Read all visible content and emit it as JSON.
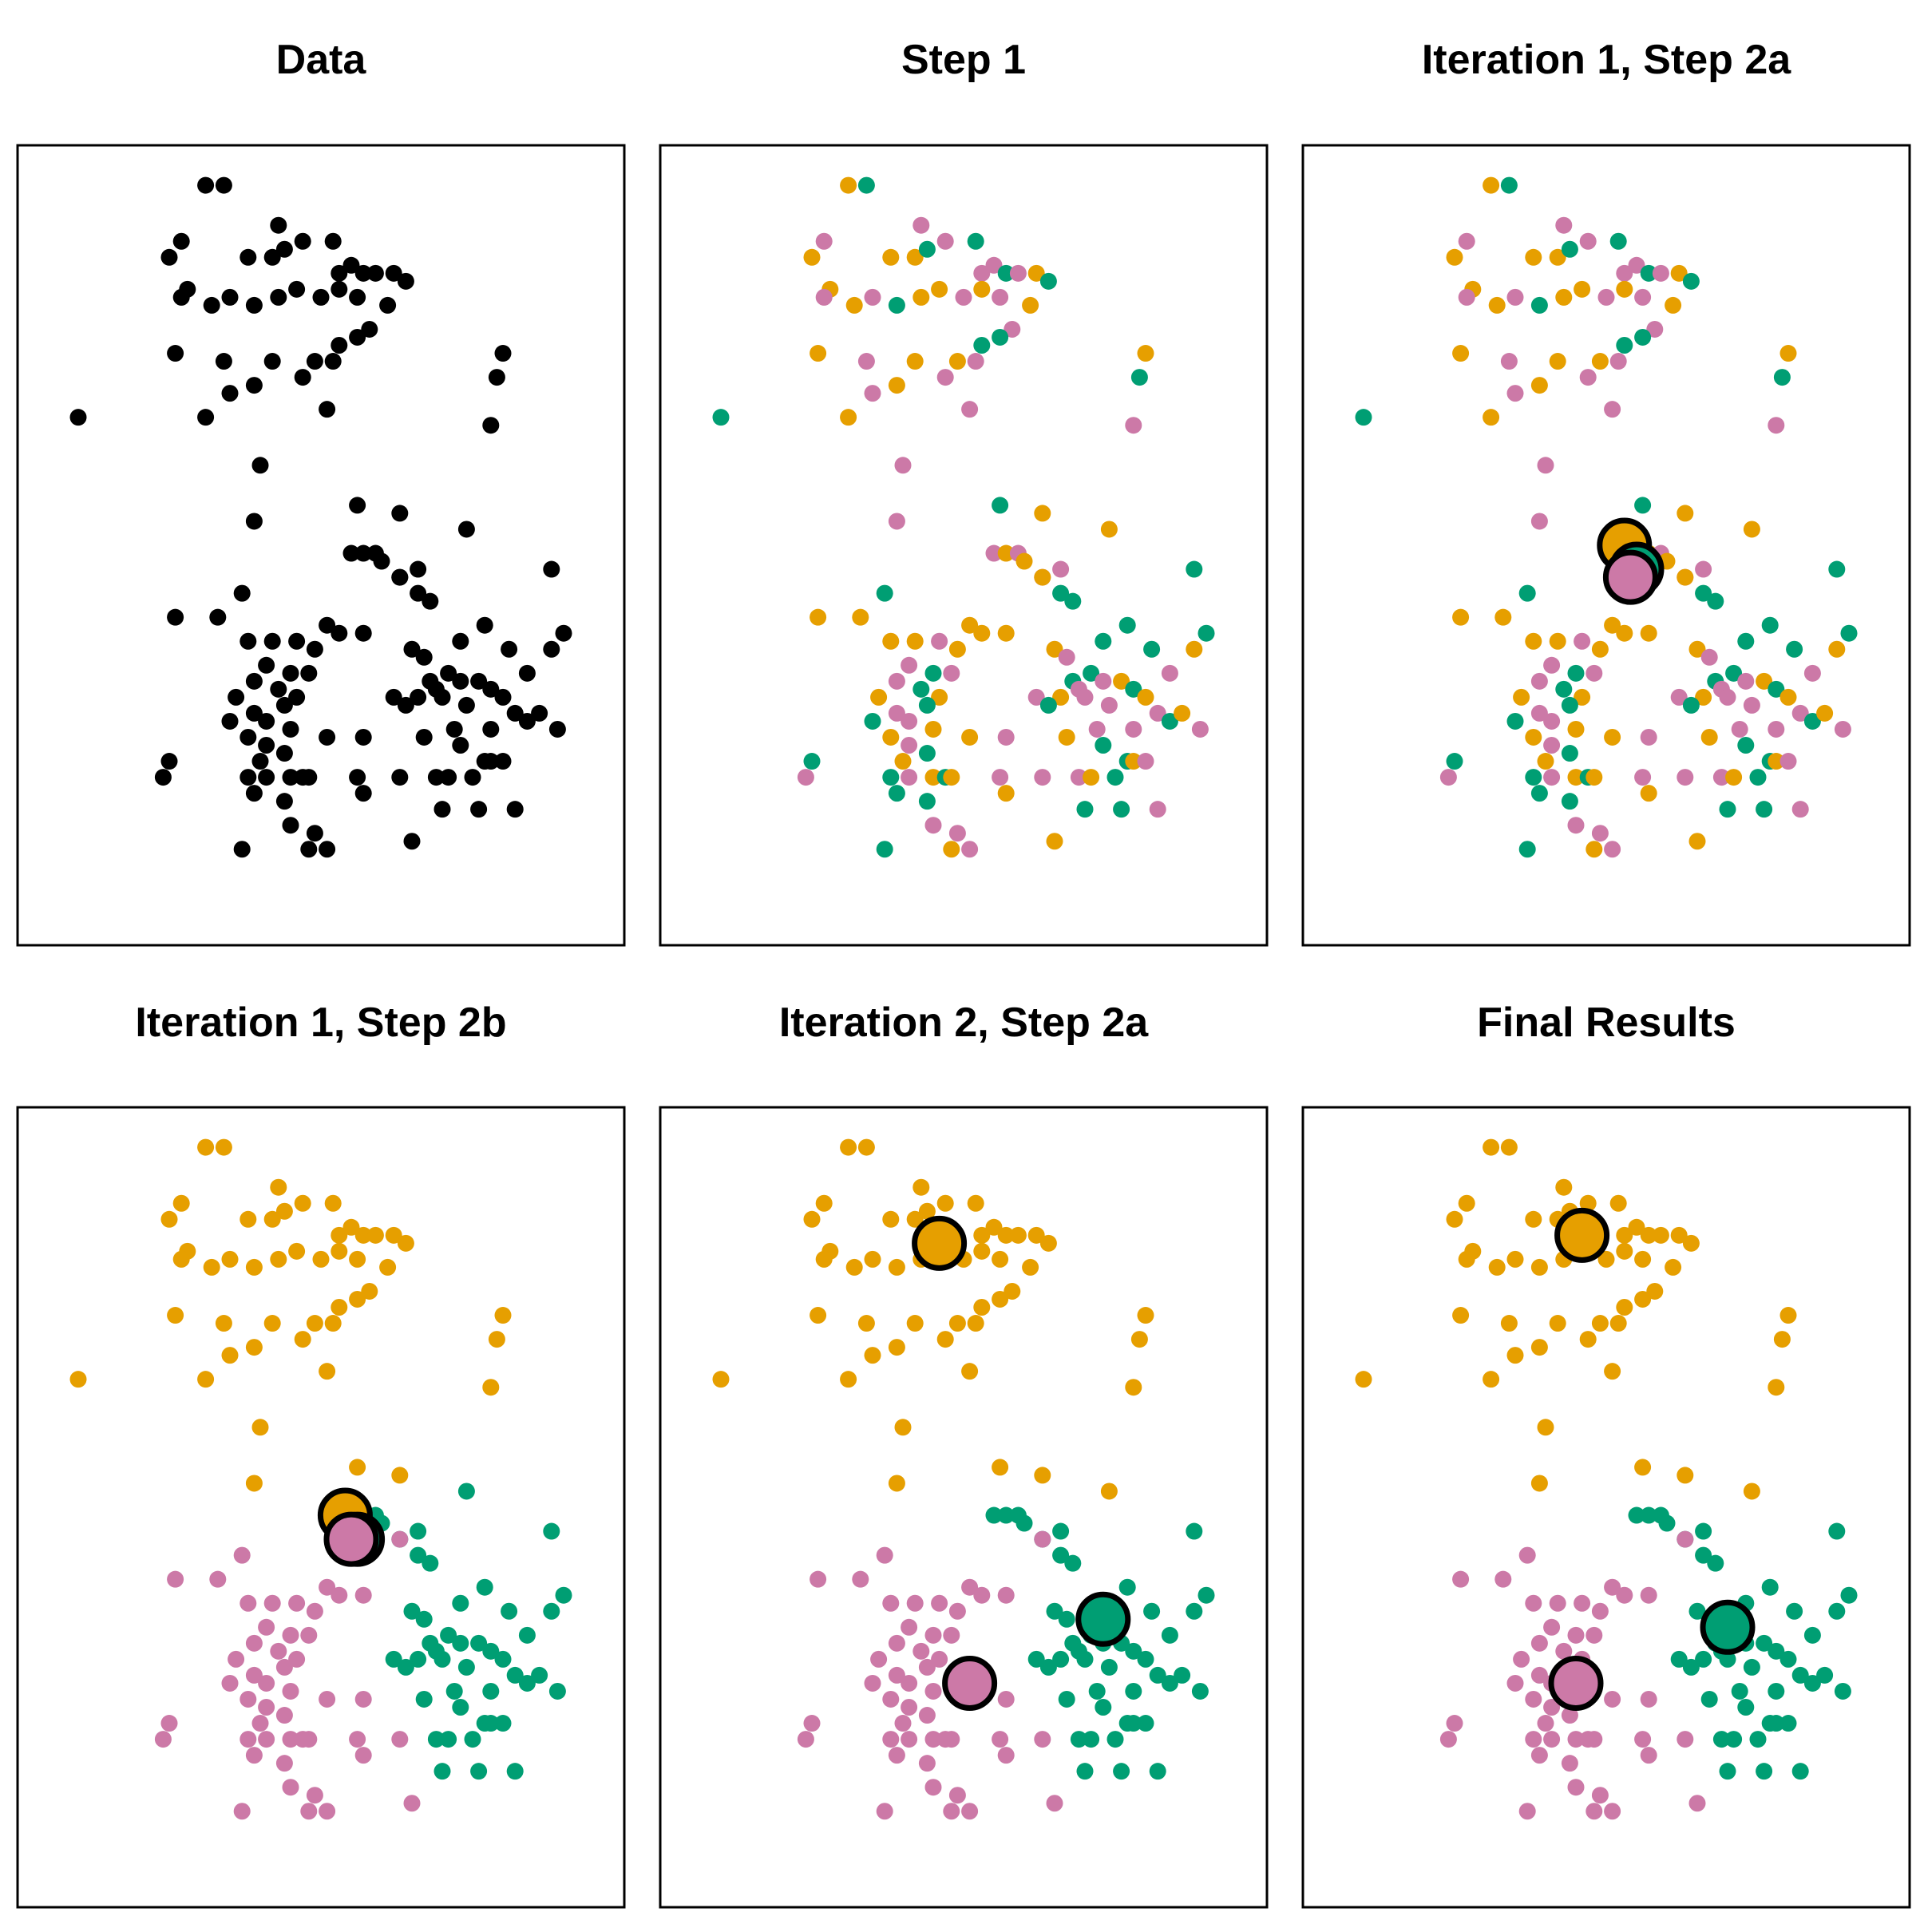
{
  "colors": {
    "orange": "#E69F00",
    "green": "#009E73",
    "pink": "#CC79A7",
    "black": "#000000"
  },
  "chart_data": [
    {
      "type": "scatter",
      "title": "Data",
      "mode": "data",
      "centroids": []
    },
    {
      "type": "scatter",
      "title": "Step 1",
      "mode": "random",
      "centroids": []
    },
    {
      "type": "scatter",
      "title": "Iteration 1, Step 2a",
      "mode": "random",
      "centroids": [
        {
          "cluster": "orange",
          "x": 0.53,
          "y": 0.5
        },
        {
          "cluster": "green",
          "x": 0.55,
          "y": 0.47
        },
        {
          "cluster": "pink",
          "x": 0.54,
          "y": 0.46
        }
      ]
    },
    {
      "type": "scatter",
      "title": "Iteration 1, Step 2b",
      "mode": "cluster1",
      "centroids": [
        {
          "cluster": "orange",
          "x": 0.54,
          "y": 0.49
        },
        {
          "cluster": "green",
          "x": 0.56,
          "y": 0.46
        },
        {
          "cluster": "pink",
          "x": 0.55,
          "y": 0.46
        }
      ]
    },
    {
      "type": "scatter",
      "title": "Iteration 2, Step 2a",
      "mode": "cluster2",
      "centroids": [
        {
          "cluster": "orange",
          "x": 0.46,
          "y": 0.83
        },
        {
          "cluster": "green",
          "x": 0.73,
          "y": 0.36
        },
        {
          "cluster": "pink",
          "x": 0.51,
          "y": 0.28
        }
      ]
    },
    {
      "type": "scatter",
      "title": "Final Results",
      "mode": "cluster2",
      "centroids": [
        {
          "cluster": "orange",
          "x": 0.46,
          "y": 0.84
        },
        {
          "cluster": "green",
          "x": 0.7,
          "y": 0.35
        },
        {
          "cluster": "pink",
          "x": 0.45,
          "y": 0.28
        }
      ]
    }
  ],
  "points": [
    {
      "x": 0.31,
      "y": 0.95,
      "c1": "orange",
      "c2": "orange",
      "r": "orange"
    },
    {
      "x": 0.34,
      "y": 0.95,
      "c1": "orange",
      "c2": "orange",
      "r": "green"
    },
    {
      "x": 0.43,
      "y": 0.9,
      "c1": "orange",
      "c2": "orange",
      "r": "pink"
    },
    {
      "x": 0.47,
      "y": 0.88,
      "c1": "orange",
      "c2": "orange",
      "r": "pink"
    },
    {
      "x": 0.52,
      "y": 0.88,
      "c1": "orange",
      "c2": "orange",
      "r": "green"
    },
    {
      "x": 0.25,
      "y": 0.86,
      "c1": "orange",
      "c2": "orange",
      "r": "orange"
    },
    {
      "x": 0.27,
      "y": 0.88,
      "c1": "orange",
      "c2": "orange",
      "r": "pink"
    },
    {
      "x": 0.38,
      "y": 0.86,
      "c1": "orange",
      "c2": "orange",
      "r": "orange"
    },
    {
      "x": 0.42,
      "y": 0.86,
      "c1": "orange",
      "c2": "orange",
      "r": "orange"
    },
    {
      "x": 0.44,
      "y": 0.87,
      "c1": "orange",
      "c2": "orange",
      "r": "green"
    },
    {
      "x": 0.53,
      "y": 0.84,
      "c1": "orange",
      "c2": "orange",
      "r": "pink"
    },
    {
      "x": 0.55,
      "y": 0.85,
      "c1": "orange",
      "c2": "orange",
      "r": "pink"
    },
    {
      "x": 0.57,
      "y": 0.84,
      "c1": "orange",
      "c2": "orange",
      "r": "green"
    },
    {
      "x": 0.59,
      "y": 0.84,
      "c1": "orange",
      "c2": "orange",
      "r": "pink"
    },
    {
      "x": 0.62,
      "y": 0.84,
      "c1": "orange",
      "c2": "orange",
      "r": "orange"
    },
    {
      "x": 0.64,
      "y": 0.83,
      "c1": "orange",
      "c2": "orange",
      "r": "green"
    },
    {
      "x": 0.28,
      "y": 0.82,
      "c1": "orange",
      "c2": "orange",
      "r": "orange"
    },
    {
      "x": 0.27,
      "y": 0.81,
      "c1": "orange",
      "c2": "orange",
      "r": "pink"
    },
    {
      "x": 0.32,
      "y": 0.8,
      "c1": "orange",
      "c2": "orange",
      "r": "orange"
    },
    {
      "x": 0.35,
      "y": 0.81,
      "c1": "orange",
      "c2": "orange",
      "r": "pink"
    },
    {
      "x": 0.39,
      "y": 0.8,
      "c1": "orange",
      "c2": "orange",
      "r": "green"
    },
    {
      "x": 0.43,
      "y": 0.81,
      "c1": "orange",
      "c2": "orange",
      "r": "orange"
    },
    {
      "x": 0.46,
      "y": 0.82,
      "c1": "orange",
      "c2": "orange",
      "r": "orange"
    },
    {
      "x": 0.5,
      "y": 0.81,
      "c1": "orange",
      "c2": "orange",
      "r": "pink"
    },
    {
      "x": 0.53,
      "y": 0.82,
      "c1": "orange",
      "c2": "orange",
      "r": "orange"
    },
    {
      "x": 0.56,
      "y": 0.81,
      "c1": "orange",
      "c2": "orange",
      "r": "pink"
    },
    {
      "x": 0.61,
      "y": 0.8,
      "c1": "orange",
      "c2": "orange",
      "r": "orange"
    },
    {
      "x": 0.58,
      "y": 0.77,
      "c1": "orange",
      "c2": "orange",
      "r": "pink"
    },
    {
      "x": 0.56,
      "y": 0.76,
      "c1": "orange",
      "c2": "orange",
      "r": "green"
    },
    {
      "x": 0.26,
      "y": 0.74,
      "c1": "orange",
      "c2": "orange",
      "r": "orange"
    },
    {
      "x": 0.34,
      "y": 0.73,
      "c1": "orange",
      "c2": "orange",
      "r": "pink"
    },
    {
      "x": 0.42,
      "y": 0.73,
      "c1": "orange",
      "c2": "orange",
      "r": "orange"
    },
    {
      "x": 0.49,
      "y": 0.73,
      "c1": "orange",
      "c2": "orange",
      "r": "orange"
    },
    {
      "x": 0.52,
      "y": 0.73,
      "c1": "orange",
      "c2": "orange",
      "r": "pink"
    },
    {
      "x": 0.53,
      "y": 0.75,
      "c1": "orange",
      "c2": "orange",
      "r": "green"
    },
    {
      "x": 0.35,
      "y": 0.69,
      "c1": "orange",
      "c2": "orange",
      "r": "pink"
    },
    {
      "x": 0.39,
      "y": 0.7,
      "c1": "orange",
      "c2": "orange",
      "r": "orange"
    },
    {
      "x": 0.47,
      "y": 0.71,
      "c1": "orange",
      "c2": "orange",
      "r": "pink"
    },
    {
      "x": 0.51,
      "y": 0.67,
      "c1": "orange",
      "c2": "orange",
      "r": "pink"
    },
    {
      "x": 0.31,
      "y": 0.66,
      "c1": "orange",
      "c2": "orange",
      "r": "orange"
    },
    {
      "x": 0.1,
      "y": 0.66,
      "c1": "orange",
      "c2": "orange",
      "r": "green"
    },
    {
      "x": 0.8,
      "y": 0.74,
      "c1": "orange",
      "c2": "orange",
      "r": "orange"
    },
    {
      "x": 0.79,
      "y": 0.71,
      "c1": "orange",
      "c2": "orange",
      "r": "green"
    },
    {
      "x": 0.78,
      "y": 0.65,
      "c1": "orange",
      "c2": "orange",
      "r": "pink"
    },
    {
      "x": 0.4,
      "y": 0.6,
      "c1": "orange",
      "c2": "orange",
      "r": "pink"
    },
    {
      "x": 0.39,
      "y": 0.53,
      "c1": "orange",
      "c2": "orange",
      "r": "pink"
    },
    {
      "x": 0.56,
      "y": 0.55,
      "c1": "orange",
      "c2": "orange",
      "r": "green"
    },
    {
      "x": 0.63,
      "y": 0.54,
      "c1": "orange",
      "c2": "orange",
      "r": "orange"
    },
    {
      "x": 0.74,
      "y": 0.52,
      "c1": "green",
      "c2": "orange",
      "r": "orange"
    },
    {
      "x": 0.55,
      "y": 0.49,
      "c1": "green",
      "c2": "green",
      "r": "pink"
    },
    {
      "x": 0.57,
      "y": 0.49,
      "c1": "green",
      "c2": "green",
      "r": "orange"
    },
    {
      "x": 0.59,
      "y": 0.49,
      "c1": "green",
      "c2": "green",
      "r": "pink"
    },
    {
      "x": 0.6,
      "y": 0.48,
      "c1": "green",
      "c2": "green",
      "r": "orange"
    },
    {
      "x": 0.63,
      "y": 0.46,
      "c1": "green",
      "c2": "green",
      "r": "pink"
    },
    {
      "x": 0.66,
      "y": 0.47,
      "c1": "green",
      "c2": "green",
      "r": "pink"
    },
    {
      "x": 0.66,
      "y": 0.44,
      "c1": "green",
      "c2": "green",
      "r": "green"
    },
    {
      "x": 0.88,
      "y": 0.47,
      "c1": "green",
      "c2": "green",
      "r": "green"
    },
    {
      "x": 0.68,
      "y": 0.43,
      "c1": "green",
      "c2": "green",
      "r": "green"
    },
    {
      "x": 0.9,
      "y": 0.39,
      "c1": "green",
      "c2": "green",
      "r": "green"
    },
    {
      "x": 0.88,
      "y": 0.37,
      "c1": "green",
      "c2": "green",
      "r": "orange"
    },
    {
      "x": 0.77,
      "y": 0.4,
      "c1": "green",
      "c2": "green",
      "r": "green"
    },
    {
      "x": 0.73,
      "y": 0.38,
      "c1": "green",
      "c2": "green",
      "r": "green"
    },
    {
      "x": 0.81,
      "y": 0.37,
      "c1": "green",
      "c2": "green",
      "r": "green"
    },
    {
      "x": 0.84,
      "y": 0.34,
      "c1": "green",
      "c2": "green",
      "r": "pink"
    },
    {
      "x": 0.65,
      "y": 0.37,
      "c1": "green",
      "c2": "green",
      "r": "orange"
    },
    {
      "x": 0.67,
      "y": 0.36,
      "c1": "green",
      "c2": "green",
      "r": "pink"
    },
    {
      "x": 0.68,
      "y": 0.33,
      "c1": "green",
      "c2": "green",
      "r": "green"
    },
    {
      "x": 0.69,
      "y": 0.32,
      "c1": "green",
      "c2": "green",
      "r": "pink"
    },
    {
      "x": 0.71,
      "y": 0.34,
      "c1": "green",
      "c2": "green",
      "r": "green"
    },
    {
      "x": 0.73,
      "y": 0.33,
      "c1": "green",
      "c2": "green",
      "r": "pink"
    },
    {
      "x": 0.76,
      "y": 0.33,
      "c1": "green",
      "c2": "green",
      "r": "orange"
    },
    {
      "x": 0.78,
      "y": 0.32,
      "c1": "green",
      "c2": "green",
      "r": "green"
    },
    {
      "x": 0.8,
      "y": 0.31,
      "c1": "green",
      "c2": "green",
      "r": "orange"
    },
    {
      "x": 0.74,
      "y": 0.3,
      "c1": "green",
      "c2": "green",
      "r": "pink"
    },
    {
      "x": 0.7,
      "y": 0.31,
      "c1": "green",
      "c2": "green",
      "r": "pink"
    },
    {
      "x": 0.66,
      "y": 0.31,
      "c1": "green",
      "c2": "green",
      "r": "orange"
    },
    {
      "x": 0.62,
      "y": 0.31,
      "c1": "green",
      "c2": "green",
      "r": "pink"
    },
    {
      "x": 0.64,
      "y": 0.3,
      "c1": "green",
      "c2": "green",
      "r": "green"
    },
    {
      "x": 0.82,
      "y": 0.29,
      "c1": "green",
      "c2": "green",
      "r": "pink"
    },
    {
      "x": 0.84,
      "y": 0.28,
      "c1": "green",
      "c2": "green",
      "r": "green"
    },
    {
      "x": 0.78,
      "y": 0.27,
      "c1": "green",
      "c2": "green",
      "r": "pink"
    },
    {
      "x": 0.72,
      "y": 0.27,
      "c1": "green",
      "c2": "green",
      "r": "pink"
    },
    {
      "x": 0.67,
      "y": 0.26,
      "c1": "green",
      "c2": "green",
      "r": "orange"
    },
    {
      "x": 0.73,
      "y": 0.25,
      "c1": "green",
      "c2": "green",
      "r": "green"
    },
    {
      "x": 0.77,
      "y": 0.23,
      "c1": "green",
      "c2": "green",
      "r": "green"
    },
    {
      "x": 0.69,
      "y": 0.21,
      "c1": "green",
      "c2": "green",
      "r": "pink"
    },
    {
      "x": 0.71,
      "y": 0.21,
      "c1": "green",
      "c2": "green",
      "r": "orange"
    },
    {
      "x": 0.75,
      "y": 0.21,
      "c1": "green",
      "c2": "green",
      "r": "green"
    },
    {
      "x": 0.78,
      "y": 0.23,
      "c1": "green",
      "c2": "green",
      "r": "orange"
    },
    {
      "x": 0.8,
      "y": 0.23,
      "c1": "green",
      "c2": "green",
      "r": "pink"
    },
    {
      "x": 0.89,
      "y": 0.27,
      "c1": "green",
      "c2": "green",
      "r": "pink"
    },
    {
      "x": 0.86,
      "y": 0.29,
      "c1": "green",
      "c2": "green",
      "r": "orange"
    },
    {
      "x": 0.7,
      "y": 0.17,
      "c1": "green",
      "c2": "green",
      "r": "green"
    },
    {
      "x": 0.76,
      "y": 0.17,
      "c1": "green",
      "c2": "green",
      "r": "green"
    },
    {
      "x": 0.82,
      "y": 0.17,
      "c1": "green",
      "c2": "green",
      "r": "pink"
    },
    {
      "x": 0.63,
      "y": 0.46,
      "c1": "pink",
      "c2": "pink",
      "r": "orange"
    },
    {
      "x": 0.37,
      "y": 0.44,
      "c1": "pink",
      "c2": "pink",
      "r": "green"
    },
    {
      "x": 0.33,
      "y": 0.41,
      "c1": "pink",
      "c2": "pink",
      "r": "orange"
    },
    {
      "x": 0.26,
      "y": 0.41,
      "c1": "pink",
      "c2": "pink",
      "r": "orange"
    },
    {
      "x": 0.51,
      "y": 0.4,
      "c1": "pink",
      "c2": "pink",
      "r": "orange"
    },
    {
      "x": 0.53,
      "y": 0.39,
      "c1": "pink",
      "c2": "pink",
      "r": "orange"
    },
    {
      "x": 0.57,
      "y": 0.39,
      "c1": "pink",
      "c2": "pink",
      "r": "orange"
    },
    {
      "x": 0.46,
      "y": 0.38,
      "c1": "pink",
      "c2": "pink",
      "r": "pink"
    },
    {
      "x": 0.38,
      "y": 0.38,
      "c1": "pink",
      "c2": "pink",
      "r": "orange"
    },
    {
      "x": 0.42,
      "y": 0.38,
      "c1": "pink",
      "c2": "pink",
      "r": "orange"
    },
    {
      "x": 0.49,
      "y": 0.37,
      "c1": "pink",
      "c2": "pink",
      "r": "orange"
    },
    {
      "x": 0.45,
      "y": 0.34,
      "c1": "pink",
      "c2": "pink",
      "r": "green"
    },
    {
      "x": 0.48,
      "y": 0.34,
      "c1": "pink",
      "c2": "pink",
      "r": "pink"
    },
    {
      "x": 0.41,
      "y": 0.35,
      "c1": "pink",
      "c2": "pink",
      "r": "pink"
    },
    {
      "x": 0.39,
      "y": 0.33,
      "c1": "pink",
      "c2": "pink",
      "r": "pink"
    },
    {
      "x": 0.36,
      "y": 0.31,
      "c1": "pink",
      "c2": "pink",
      "r": "orange"
    },
    {
      "x": 0.43,
      "y": 0.32,
      "c1": "pink",
      "c2": "pink",
      "r": "green"
    },
    {
      "x": 0.46,
      "y": 0.31,
      "c1": "pink",
      "c2": "pink",
      "r": "orange"
    },
    {
      "x": 0.44,
      "y": 0.3,
      "c1": "pink",
      "c2": "pink",
      "r": "green"
    },
    {
      "x": 0.39,
      "y": 0.29,
      "c1": "pink",
      "c2": "pink",
      "r": "pink"
    },
    {
      "x": 0.35,
      "y": 0.28,
      "c1": "pink",
      "c2": "pink",
      "r": "green"
    },
    {
      "x": 0.41,
      "y": 0.28,
      "c1": "pink",
      "c2": "pink",
      "r": "pink"
    },
    {
      "x": 0.45,
      "y": 0.27,
      "c1": "pink",
      "c2": "pink",
      "r": "orange"
    },
    {
      "x": 0.38,
      "y": 0.26,
      "c1": "pink",
      "c2": "pink",
      "r": "orange"
    },
    {
      "x": 0.41,
      "y": 0.25,
      "c1": "pink",
      "c2": "pink",
      "r": "pink"
    },
    {
      "x": 0.44,
      "y": 0.24,
      "c1": "pink",
      "c2": "pink",
      "r": "green"
    },
    {
      "x": 0.51,
      "y": 0.26,
      "c1": "pink",
      "c2": "pink",
      "r": "orange"
    },
    {
      "x": 0.57,
      "y": 0.26,
      "c1": "pink",
      "c2": "pink",
      "r": "pink"
    },
    {
      "x": 0.4,
      "y": 0.23,
      "c1": "pink",
      "c2": "pink",
      "r": "orange"
    },
    {
      "x": 0.41,
      "y": 0.21,
      "c1": "pink",
      "c2": "pink",
      "r": "pink"
    },
    {
      "x": 0.45,
      "y": 0.21,
      "c1": "pink",
      "c2": "pink",
      "r": "orange"
    },
    {
      "x": 0.25,
      "y": 0.23,
      "c1": "pink",
      "c2": "pink",
      "r": "green"
    },
    {
      "x": 0.24,
      "y": 0.21,
      "c1": "pink",
      "c2": "pink",
      "r": "pink"
    },
    {
      "x": 0.38,
      "y": 0.21,
      "c1": "pink",
      "c2": "pink",
      "r": "green"
    },
    {
      "x": 0.44,
      "y": 0.18,
      "c1": "pink",
      "c2": "pink",
      "r": "green"
    },
    {
      "x": 0.47,
      "y": 0.21,
      "c1": "pink",
      "c2": "pink",
      "r": "green"
    },
    {
      "x": 0.48,
      "y": 0.21,
      "c1": "pink",
      "c2": "pink",
      "r": "orange"
    },
    {
      "x": 0.56,
      "y": 0.21,
      "c1": "pink",
      "c2": "pink",
      "r": "pink"
    },
    {
      "x": 0.63,
      "y": 0.21,
      "c1": "pink",
      "c2": "pink",
      "r": "pink"
    },
    {
      "x": 0.57,
      "y": 0.19,
      "c1": "pink",
      "c2": "pink",
      "r": "orange"
    },
    {
      "x": 0.39,
      "y": 0.19,
      "c1": "pink",
      "c2": "pink",
      "r": "green"
    },
    {
      "x": 0.45,
      "y": 0.15,
      "c1": "pink",
      "c2": "pink",
      "r": "pink"
    },
    {
      "x": 0.49,
      "y": 0.14,
      "c1": "pink",
      "c2": "pink",
      "r": "pink"
    },
    {
      "x": 0.48,
      "y": 0.12,
      "c1": "pink",
      "c2": "pink",
      "r": "orange"
    },
    {
      "x": 0.51,
      "y": 0.12,
      "c1": "pink",
      "c2": "pink",
      "r": "pink"
    },
    {
      "x": 0.37,
      "y": 0.12,
      "c1": "pink",
      "c2": "pink",
      "r": "green"
    },
    {
      "x": 0.65,
      "y": 0.13,
      "c1": "pink",
      "c2": "pink",
      "r": "orange"
    }
  ]
}
